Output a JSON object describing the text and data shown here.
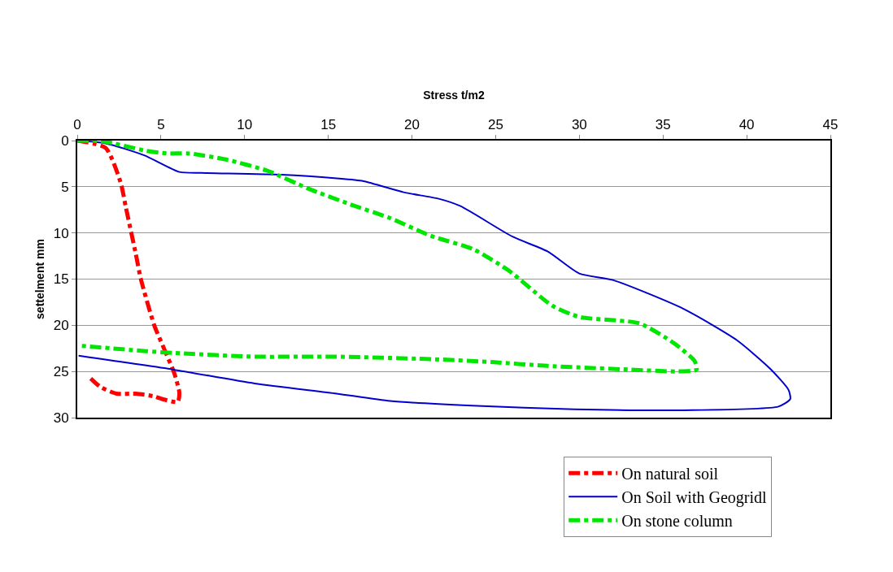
{
  "chart_data": {
    "type": "line",
    "xlabel": "Stress t/m2",
    "ylabel": "settelment mm",
    "xlim": [
      0,
      45
    ],
    "xticks": [
      0,
      5,
      10,
      15,
      20,
      25,
      30,
      35,
      40,
      45
    ],
    "ylim": [
      30,
      0
    ],
    "yticks": [
      0,
      5,
      10,
      15,
      20,
      25,
      30
    ],
    "grid": "y",
    "legend": "bottom right",
    "series": [
      {
        "name": "On natural soil",
        "color": "#ff0000",
        "line_style": "dashed",
        "x": [
          0,
          1.7,
          2.6,
          2.9,
          3.5,
          3.8,
          4.6,
          5.2,
          5.8,
          6.1,
          6.0,
          5.1,
          4.6,
          3.5,
          2.35,
          1.4,
          0.65
        ],
        "values": [
          0,
          0.8,
          4.6,
          7.2,
          12.3,
          15,
          20,
          22.6,
          25.2,
          27.3,
          28.3,
          28,
          27.7,
          27.4,
          27.4,
          26.7,
          25.5
        ]
      },
      {
        "name": "On Soil with Geogridl",
        "color": "#0000cc",
        "line_style": "solid",
        "x": [
          0,
          1.7,
          4.0,
          6.1,
          7.4,
          12.2,
          15.5,
          17.1,
          19.5,
          21.6,
          22.9,
          26.0,
          28.1,
          30.0,
          32.0,
          36.2,
          39.4,
          41.4,
          42.5,
          42.6,
          41.9,
          36.2,
          29.7,
          23.6,
          18.7,
          15.5,
          10.6,
          5.75,
          0.08
        ],
        "values": [
          0,
          0.3,
          1.6,
          3.4,
          3.5,
          3.7,
          4.1,
          4.4,
          5.6,
          6.3,
          7.1,
          10.4,
          12.0,
          14.4,
          15.1,
          18.2,
          21.6,
          24.7,
          27.0,
          28.0,
          28.8,
          29.2,
          29.1,
          28.7,
          28.2,
          27.4,
          26.3,
          24.8,
          23.3
        ]
      },
      {
        "name": "On stone column",
        "color": "#00e600",
        "line_style": "dashed",
        "x": [
          0,
          1.6,
          4.1,
          5.4,
          6.7,
          9.0,
          11.4,
          13.8,
          16.3,
          18.7,
          21.1,
          23.7,
          25.8,
          28.4,
          30.0,
          33.6,
          35.7,
          36.9,
          37.0,
          35.9,
          33.0,
          28.1,
          24.9,
          21.6,
          15.5,
          10.6,
          5.75,
          4.1,
          0.08
        ],
        "values": [
          0,
          0.1,
          1.1,
          1.4,
          1.4,
          2.1,
          3.3,
          5.2,
          6.9,
          8.4,
          10.3,
          11.8,
          14.1,
          17.9,
          19.1,
          19.8,
          22.0,
          23.9,
          24.8,
          25.0,
          24.8,
          24.4,
          24.0,
          23.7,
          23.4,
          23.4,
          23.0,
          22.8,
          22.2
        ]
      }
    ]
  }
}
